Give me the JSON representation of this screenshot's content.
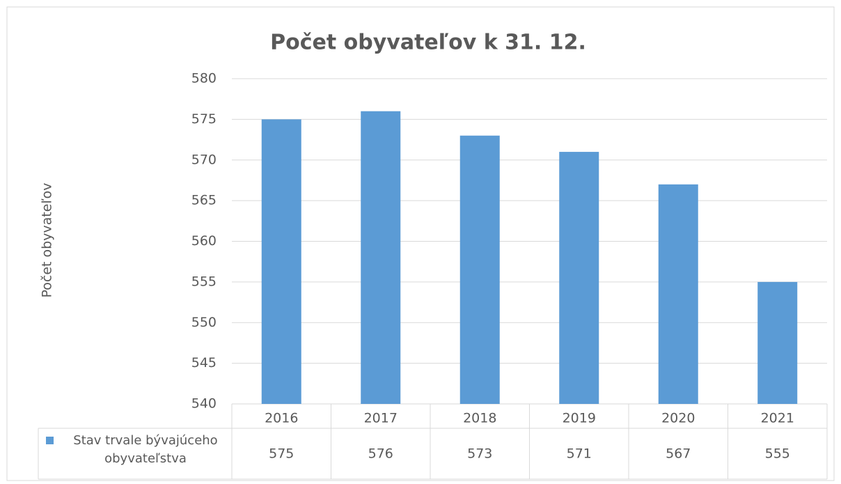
{
  "chart_data": {
    "type": "bar",
    "title": "Počet obyvateľov k 31. 12.",
    "y_label": "Počet obyvateľov",
    "categories": [
      "2016",
      "2017",
      "2018",
      "2019",
      "2020",
      "2021"
    ],
    "series": [
      {
        "name": "Stav trvale bývajúceho obyvateľstva",
        "color": "#5b9bd5",
        "values": [
          575,
          576,
          573,
          571,
          567,
          555
        ]
      }
    ],
    "ylim": [
      540,
      580
    ],
    "yticks": [
      540,
      545,
      550,
      555,
      560,
      565,
      570,
      575,
      580
    ],
    "grid": true,
    "data_table": true
  }
}
